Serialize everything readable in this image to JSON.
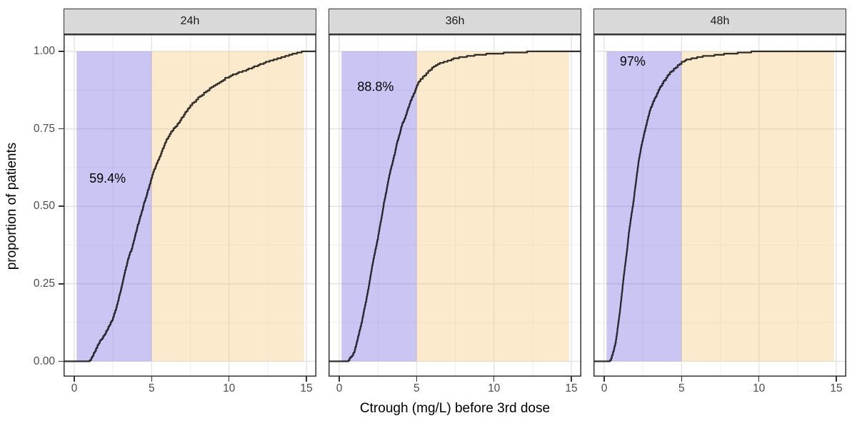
{
  "chart_data": {
    "type": "line",
    "subtype": "ecdf-step",
    "title": "",
    "xlabel": "Ctrough (mg/L) before 3rd dose",
    "ylabel": "proportion of patients",
    "x_ticks": [
      0,
      5,
      10,
      15
    ],
    "x_tick_labels": [
      "0",
      "5",
      "10",
      "15"
    ],
    "x_minor_ticks": [
      2.5,
      7.5,
      12.5
    ],
    "y_ticks": [
      0,
      0.25,
      0.5,
      0.75,
      1
    ],
    "y_tick_labels": [
      "0.00",
      "0.25",
      "0.50",
      "0.75",
      "1.00"
    ],
    "y_minor_ticks": [
      0.125,
      0.375,
      0.625,
      0.875
    ],
    "xlim": [
      -0.69,
      15.64
    ],
    "ylim": [
      -0.05,
      1.05
    ],
    "grid": true,
    "legend": false,
    "line_color": "#000000",
    "line_alpha": 0.8,
    "bands": [
      {
        "name": "below-5-band",
        "x_from": 0.15,
        "x_to": 5.0,
        "y_from": 0,
        "y_to": 1,
        "color": "#6A5ADC",
        "alpha": 0.35
      },
      {
        "name": "above-5-band",
        "x_from": 5.0,
        "x_to": 14.85,
        "y_from": 0,
        "y_to": 1,
        "color": "#F6C36D",
        "alpha": 0.35
      }
    ],
    "facets": [
      {
        "label": "24h",
        "annotation": {
          "text": "59.4%",
          "x": 2.15,
          "y": 0.59
        },
        "percent_below_5_mg_L": 59.4,
        "ecdf": [
          [
            -0.69,
            0
          ],
          [
            0.85,
            0
          ],
          [
            1.0,
            0.004
          ],
          [
            1.1,
            0.01
          ],
          [
            1.25,
            0.025
          ],
          [
            1.4,
            0.04
          ],
          [
            1.5,
            0.05
          ],
          [
            1.65,
            0.065
          ],
          [
            1.8,
            0.075
          ],
          [
            2.0,
            0.09
          ],
          [
            2.1,
            0.1
          ],
          [
            2.25,
            0.115
          ],
          [
            2.4,
            0.13
          ],
          [
            2.5,
            0.14
          ],
          [
            2.6,
            0.155
          ],
          [
            2.75,
            0.18
          ],
          [
            2.9,
            0.21
          ],
          [
            3.0,
            0.23
          ],
          [
            3.1,
            0.25
          ],
          [
            3.25,
            0.285
          ],
          [
            3.4,
            0.315
          ],
          [
            3.5,
            0.335
          ],
          [
            3.6,
            0.35
          ],
          [
            3.75,
            0.37
          ],
          [
            3.9,
            0.4
          ],
          [
            4.0,
            0.42
          ],
          [
            4.1,
            0.44
          ],
          [
            4.25,
            0.465
          ],
          [
            4.4,
            0.49
          ],
          [
            4.5,
            0.51
          ],
          [
            4.6,
            0.525
          ],
          [
            4.75,
            0.55
          ],
          [
            4.9,
            0.575
          ],
          [
            5.0,
            0.594
          ],
          [
            5.1,
            0.61
          ],
          [
            5.25,
            0.63
          ],
          [
            5.4,
            0.648
          ],
          [
            5.5,
            0.658
          ],
          [
            5.75,
            0.69
          ],
          [
            6.0,
            0.72
          ],
          [
            6.25,
            0.74
          ],
          [
            6.5,
            0.755
          ],
          [
            6.75,
            0.772
          ],
          [
            7.0,
            0.79
          ],
          [
            7.25,
            0.808
          ],
          [
            7.5,
            0.825
          ],
          [
            7.75,
            0.838
          ],
          [
            8.0,
            0.85
          ],
          [
            8.25,
            0.86
          ],
          [
            8.5,
            0.87
          ],
          [
            8.75,
            0.88
          ],
          [
            9.0,
            0.89
          ],
          [
            9.25,
            0.898
          ],
          [
            9.5,
            0.905
          ],
          [
            9.75,
            0.913
          ],
          [
            10.0,
            0.92
          ],
          [
            10.25,
            0.925
          ],
          [
            10.5,
            0.93
          ],
          [
            10.75,
            0.934
          ],
          [
            11.0,
            0.938
          ],
          [
            11.25,
            0.943
          ],
          [
            11.5,
            0.948
          ],
          [
            11.75,
            0.953
          ],
          [
            12.0,
            0.958
          ],
          [
            12.25,
            0.963
          ],
          [
            12.5,
            0.968
          ],
          [
            12.75,
            0.971
          ],
          [
            13.0,
            0.975
          ],
          [
            13.25,
            0.978
          ],
          [
            13.5,
            0.982
          ],
          [
            13.75,
            0.986
          ],
          [
            14.0,
            0.99
          ],
          [
            14.2,
            0.993
          ],
          [
            14.4,
            0.995
          ],
          [
            14.6,
            0.998
          ],
          [
            14.8,
            1.0
          ],
          [
            15.64,
            1.0
          ]
        ]
      },
      {
        "label": "36h",
        "annotation": {
          "text": "88.8%",
          "x": 2.35,
          "y": 0.886
        },
        "percent_below_5_mg_L": 88.8,
        "ecdf": [
          [
            -0.69,
            0
          ],
          [
            0.45,
            0
          ],
          [
            0.6,
            0.005
          ],
          [
            0.75,
            0.015
          ],
          [
            0.9,
            0.025
          ],
          [
            1.0,
            0.037
          ],
          [
            1.1,
            0.055
          ],
          [
            1.25,
            0.087
          ],
          [
            1.4,
            0.115
          ],
          [
            1.5,
            0.14
          ],
          [
            1.6,
            0.165
          ],
          [
            1.75,
            0.2
          ],
          [
            1.9,
            0.24
          ],
          [
            2.0,
            0.27
          ],
          [
            2.1,
            0.3
          ],
          [
            2.25,
            0.34
          ],
          [
            2.4,
            0.375
          ],
          [
            2.5,
            0.4
          ],
          [
            2.6,
            0.43
          ],
          [
            2.75,
            0.47
          ],
          [
            2.9,
            0.515
          ],
          [
            3.0,
            0.54
          ],
          [
            3.1,
            0.565
          ],
          [
            3.25,
            0.605
          ],
          [
            3.4,
            0.635
          ],
          [
            3.5,
            0.655
          ],
          [
            3.6,
            0.675
          ],
          [
            3.75,
            0.71
          ],
          [
            3.9,
            0.735
          ],
          [
            4.0,
            0.755
          ],
          [
            4.1,
            0.77
          ],
          [
            4.25,
            0.785
          ],
          [
            4.4,
            0.81
          ],
          [
            4.5,
            0.824
          ],
          [
            4.6,
            0.84
          ],
          [
            4.75,
            0.855
          ],
          [
            4.9,
            0.875
          ],
          [
            5.0,
            0.888
          ],
          [
            5.1,
            0.9
          ],
          [
            5.25,
            0.91
          ],
          [
            5.4,
            0.918
          ],
          [
            5.5,
            0.924
          ],
          [
            5.75,
            0.936
          ],
          [
            6.0,
            0.947
          ],
          [
            6.25,
            0.955
          ],
          [
            6.5,
            0.962
          ],
          [
            6.75,
            0.966
          ],
          [
            7.0,
            0.97
          ],
          [
            7.25,
            0.974
          ],
          [
            7.5,
            0.978
          ],
          [
            8.0,
            0.982
          ],
          [
            8.5,
            0.986
          ],
          [
            9.0,
            0.989
          ],
          [
            9.5,
            0.991
          ],
          [
            10.0,
            0.993
          ],
          [
            10.5,
            0.994
          ],
          [
            11.0,
            0.996
          ],
          [
            11.5,
            0.997
          ],
          [
            12.0,
            0.998
          ],
          [
            12.4,
            0.999
          ],
          [
            12.8,
            1.0
          ],
          [
            15.64,
            1.0
          ]
        ]
      },
      {
        "label": "48h",
        "annotation": {
          "text": "97%",
          "x": 1.84,
          "y": 0.968
        },
        "percent_below_5_mg_L": 97,
        "ecdf": [
          [
            -0.69,
            0
          ],
          [
            0.3,
            0
          ],
          [
            0.45,
            0.01
          ],
          [
            0.5,
            0.018
          ],
          [
            0.6,
            0.035
          ],
          [
            0.75,
            0.065
          ],
          [
            0.85,
            0.1
          ],
          [
            1.0,
            0.157
          ],
          [
            1.1,
            0.2
          ],
          [
            1.25,
            0.27
          ],
          [
            1.4,
            0.33
          ],
          [
            1.5,
            0.37
          ],
          [
            1.6,
            0.42
          ],
          [
            1.75,
            0.47
          ],
          [
            1.9,
            0.52
          ],
          [
            2.0,
            0.56
          ],
          [
            2.1,
            0.6
          ],
          [
            2.25,
            0.655
          ],
          [
            2.4,
            0.695
          ],
          [
            2.5,
            0.717
          ],
          [
            2.6,
            0.74
          ],
          [
            2.75,
            0.77
          ],
          [
            2.9,
            0.8
          ],
          [
            3.0,
            0.817
          ],
          [
            3.1,
            0.83
          ],
          [
            3.25,
            0.847
          ],
          [
            3.4,
            0.862
          ],
          [
            3.5,
            0.874
          ],
          [
            3.6,
            0.884
          ],
          [
            3.75,
            0.897
          ],
          [
            3.9,
            0.908
          ],
          [
            4.0,
            0.916
          ],
          [
            4.25,
            0.932
          ],
          [
            4.5,
            0.943
          ],
          [
            4.75,
            0.955
          ],
          [
            5.0,
            0.965
          ],
          [
            5.2,
            0.971
          ],
          [
            5.5,
            0.975
          ],
          [
            6.0,
            0.981
          ],
          [
            6.5,
            0.985
          ],
          [
            7.0,
            0.987
          ],
          [
            7.5,
            0.99
          ],
          [
            8.0,
            0.992
          ],
          [
            8.5,
            0.994
          ],
          [
            9.0,
            0.996
          ],
          [
            9.4,
            0.998
          ],
          [
            9.7,
            1.0
          ],
          [
            15.64,
            1.0
          ]
        ]
      }
    ]
  },
  "style_colors": {
    "strip_fill": "#D9D9D9",
    "strip_label": "#1A1A1A",
    "panel_border": "#333333",
    "grid_major": "#E3E3E3",
    "grid_minor": "#F1F1F1",
    "tick_mark": "#333333",
    "tick_label": "#4D4D4D",
    "annotation_text": "#000000",
    "background": "#FFFFFF"
  }
}
